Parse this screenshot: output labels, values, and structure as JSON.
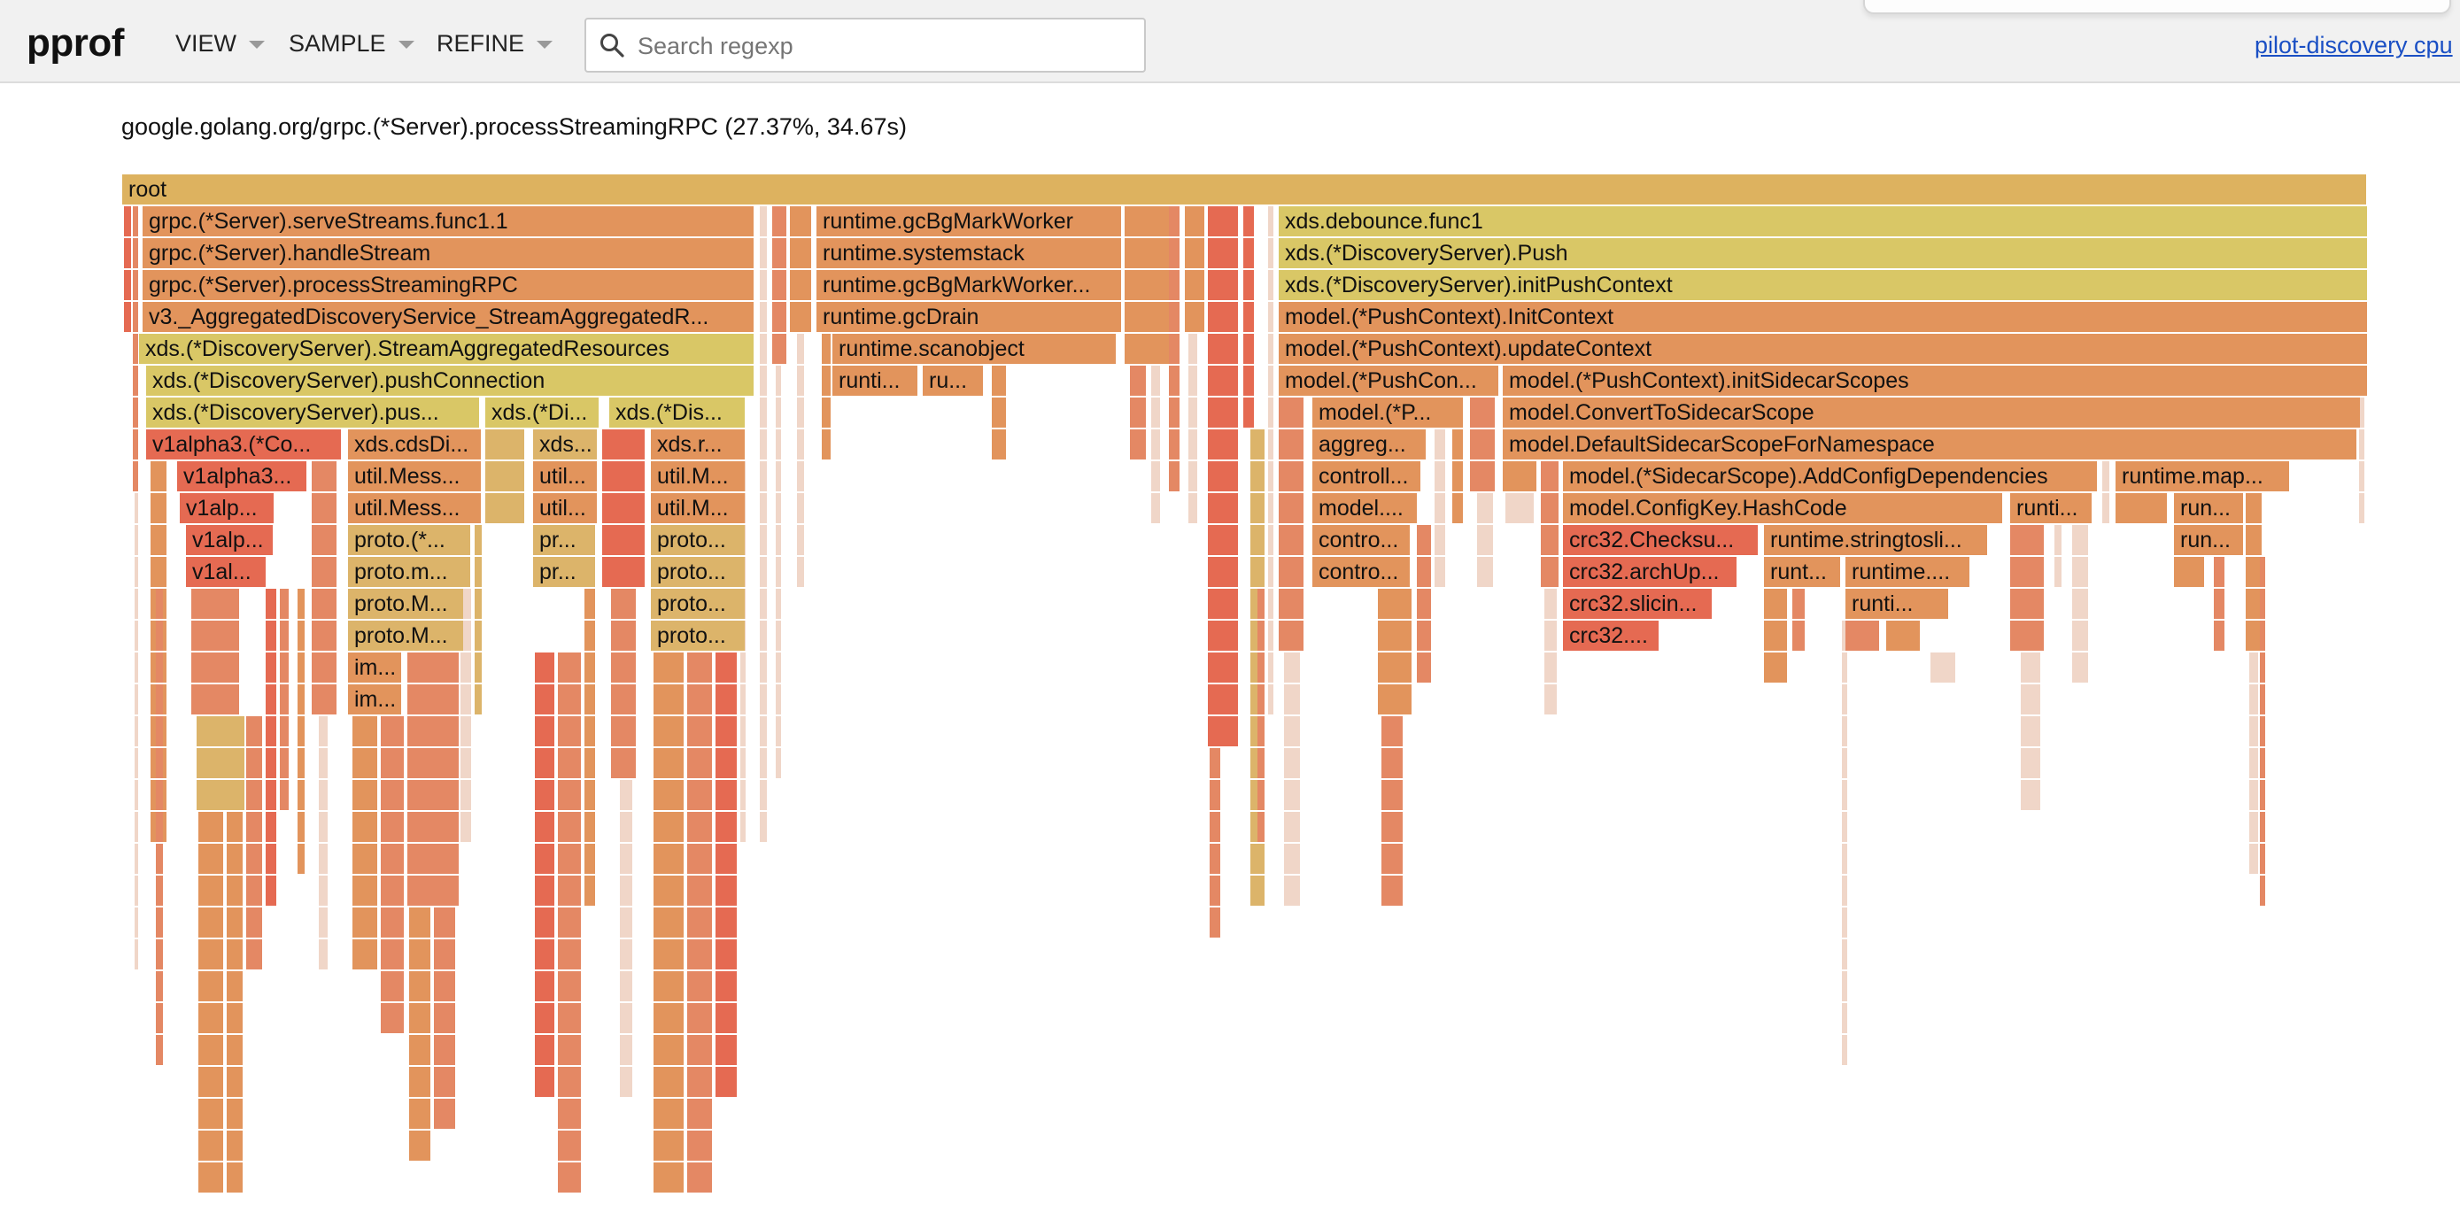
{
  "app": {
    "brand": "pprof",
    "menus": [
      {
        "label": "VIEW"
      },
      {
        "label": "SAMPLE"
      },
      {
        "label": "REFINE"
      }
    ],
    "search": {
      "placeholder": "Search regexp",
      "value": ""
    },
    "profile_link": "pilot-discovery cpu"
  },
  "detail": "google.golang.org/grpc.(*Server).processStreamingRPC (27.37%, 34.67s)",
  "palette": {
    "root": "#ddb25f",
    "orange": "#e2945c",
    "yellow": "#d9c766",
    "khaki": "#dcb46a",
    "red": "#e56a52",
    "salmon": "#e48864",
    "pale": "#f0d6c8"
  },
  "flame_labels": {
    "root": "root",
    "grpc_serve": "grpc.(*Server).serveStreams.func1.1",
    "grpc_handle": "grpc.(*Server).handleStream",
    "grpc_process": "grpc.(*Server).processStreamingRPC",
    "v3_ads": "v3._AggregatedDiscoveryService_StreamAggregatedR...",
    "xds_sar": "xds.(*DiscoveryServer).StreamAggregatedResources",
    "xds_pushconn": "xds.(*DiscoveryServer).pushConnection",
    "xds_pus": "xds.(*DiscoveryServer).pus...",
    "xds_di": "xds.(*Di...",
    "xds_dis": "xds.(*Dis...",
    "v1alpha3_co": "v1alpha3.(*Co...",
    "xds_cds": "xds.cdsDi...",
    "xds_short": "xds...",
    "xds_r": "xds.r...",
    "v1alpha3_b": "v1alpha3...",
    "util_mess": "util.Mess...",
    "util_short": "util...",
    "util_m": "util.M...",
    "v1alp_a": "v1alp...",
    "util_mess2": "util.Mess...",
    "util_short2": "util...",
    "util_m2": "util.M...",
    "v1alp_b": "v1alp...",
    "proto_star": "proto.(*...",
    "pr_a": "pr...",
    "proto_a": "proto...",
    "v1al": "v1al...",
    "proto_m": "proto.m...",
    "pr_b": "pr...",
    "proto_b": "proto...",
    "proto_M1": "proto.M...",
    "proto_c": "proto...",
    "proto_M2": "proto.M...",
    "proto_d": "proto...",
    "im_a": "im...",
    "im_b": "im...",
    "gc_bgmark": "runtime.gcBgMarkWorker",
    "systemstack": "runtime.systemstack",
    "gc_bgmark2": "runtime.gcBgMarkWorker...",
    "gcdrain": "runtime.gcDrain",
    "scanobject": "runtime.scanobject",
    "runti_a": "runti...",
    "ru_a": "ru...",
    "debounce": "xds.debounce.func1",
    "ds_push": "xds.(*DiscoveryServer).Push",
    "init_push": "xds.(*DiscoveryServer).initPushContext",
    "pc_init": "model.(*PushContext).InitContext",
    "pc_update": "model.(*PushContext).updateContext",
    "pc_con": "model.(*PushCon...",
    "pc_sidecar": "model.(*PushContext).initSidecarScopes",
    "model_p": "model.(*P...",
    "convert_sc": "model.ConvertToSidecarScope",
    "default_sc": "model.DefaultSidecarScopeForNamespace",
    "aggreg": "aggreg...",
    "controll": "controll...",
    "add_config": "model.(*SidecarScope).AddConfigDependencies",
    "rt_map": "runtime.map...",
    "model_dots": "model....",
    "hashcode": "model.ConfigKey.HashCode",
    "runti_b": "runti...",
    "run_a": "run...",
    "contro_a": "contro...",
    "crc_checksum": "crc32.Checksu...",
    "stringtosli": "runtime.stringtosli...",
    "run_b": "run...",
    "contro_b": "contro...",
    "crc_archup": "crc32.archUp...",
    "runt": "runt...",
    "runtime_dots": "runtime....",
    "crc_slicin": "crc32.slicin...",
    "runti_c": "runti...",
    "crc_dots": "crc32...."
  }
}
